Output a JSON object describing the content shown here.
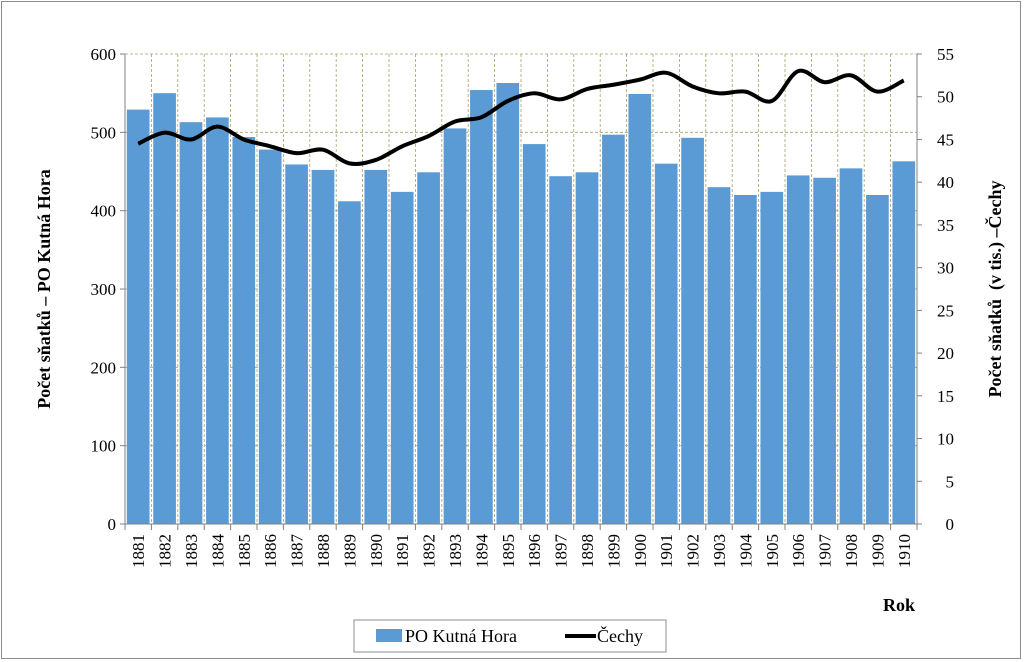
{
  "chart_data": {
    "type": "bar",
    "categories": [
      "1881",
      "1882",
      "1883",
      "1884",
      "1885",
      "1886",
      "1887",
      "1888",
      "1889",
      "1890",
      "1891",
      "1892",
      "1893",
      "1894",
      "1895",
      "1896",
      "1897",
      "1898",
      "1899",
      "1900",
      "1901",
      "1902",
      "1903",
      "1904",
      "1905",
      "1906",
      "1907",
      "1908",
      "1909",
      "1910"
    ],
    "series": [
      {
        "name": "PO Kutná Hora",
        "type": "bar",
        "axis": "left",
        "color": "#5b9bd5",
        "values": [
          529,
          550,
          513,
          519,
          494,
          478,
          459,
          452,
          412,
          452,
          424,
          449,
          505,
          554,
          563,
          485,
          444,
          449,
          497,
          549,
          460,
          493,
          430,
          420,
          424,
          445,
          442,
          454,
          420,
          463
        ]
      },
      {
        "name": "Čechy",
        "type": "line",
        "axis": "right",
        "color": "#000000",
        "values": [
          44.5,
          45.8,
          45.0,
          46.5,
          45.0,
          44.2,
          43.4,
          43.8,
          42.2,
          42.6,
          44.2,
          45.4,
          47.1,
          47.6,
          49.5,
          50.4,
          49.7,
          50.9,
          51.4,
          52.0,
          52.8,
          51.2,
          50.4,
          50.6,
          49.5,
          53.0,
          51.7,
          52.5,
          50.6,
          51.9
        ]
      }
    ],
    "xlabel": "Rok",
    "ylabel": "Počet sňatků – PO Kutná Hora",
    "y2label": "Počet sňatků  (v tis.) –Čechy",
    "ylim": [
      0,
      600
    ],
    "y2lim": [
      0,
      55
    ],
    "yticks": [
      "0",
      "100",
      "200",
      "300",
      "400",
      "500",
      "600"
    ],
    "y2ticks": [
      "0",
      "5",
      "10",
      "15",
      "20",
      "25",
      "30",
      "35",
      "40",
      "45",
      "50",
      "55"
    ],
    "grid": true,
    "legend_position": "bottom"
  }
}
